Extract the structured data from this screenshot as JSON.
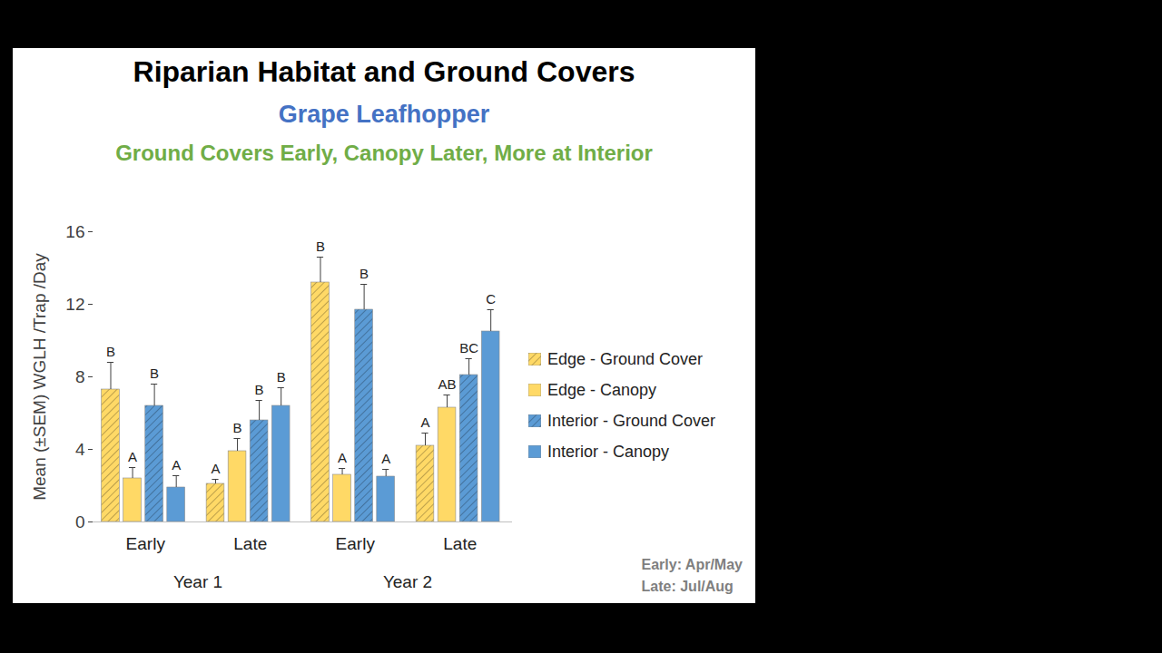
{
  "chart_data": {
    "type": "bar",
    "title": "Riparian Habitat and Ground Covers",
    "subtitle": "Grape Leafhopper",
    "subtitle_2": "Ground Covers Early, Canopy Later, More at Interior",
    "y_label": "Mean (±SEM) WGLH /Trap /Day",
    "categories": [
      "Early",
      "Late",
      "Early",
      "Late"
    ],
    "groups": [
      "Year 1",
      "Year 1",
      "Year 2",
      "Year 2"
    ],
    "series": [
      {
        "name": "Edge - Ground Cover",
        "color": "#FFD966",
        "values": [
          7.3,
          2.1,
          13.2,
          4.2
        ],
        "errors": [
          1.5,
          0.25,
          1.4,
          0.7
        ],
        "letters": [
          "B",
          "A",
          "B",
          "A"
        ]
      },
      {
        "name": "Edge - Canopy",
        "color": "#FFD966",
        "values": [
          2.4,
          3.9,
          2.6,
          6.3
        ],
        "errors": [
          0.6,
          0.7,
          0.35,
          0.7
        ],
        "letters": [
          "A",
          "B",
          "A",
          "AB"
        ]
      },
      {
        "name": "Interior - Ground Cover",
        "color": "#5B9BD5",
        "values": [
          6.4,
          5.6,
          11.7,
          8.1
        ],
        "errors": [
          1.2,
          1.1,
          1.4,
          0.9
        ],
        "letters": [
          "B",
          "B",
          "B",
          "BC"
        ]
      },
      {
        "name": "Interior - Canopy",
        "color": "#5B9BD5",
        "values": [
          1.9,
          6.4,
          2.5,
          10.5
        ],
        "errors": [
          0.65,
          1.0,
          0.4,
          1.2
        ],
        "letters": [
          "A",
          "B",
          "A",
          "C"
        ]
      }
    ],
    "ylim": [
      0,
      16
    ],
    "yticks": [
      0,
      4,
      8,
      12,
      16
    ],
    "legend": "right",
    "notes": [
      "Early: Apr/May",
      "Late: Jul/Aug"
    ]
  }
}
